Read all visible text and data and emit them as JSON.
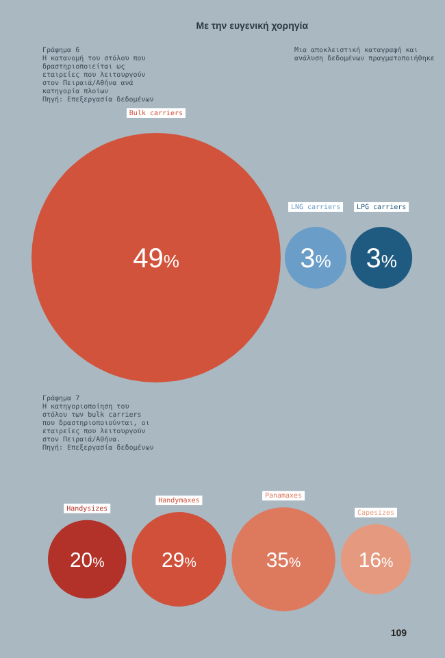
{
  "chart_data": [
    {
      "type": "other",
      "title": "Γράφημα 6",
      "subtitle": "Η κατανομή του στόλου που δραστηριοποιείται ως εταιρείες που λειτουργούν στον Πειραιά/Αθήνα ανά κατηγορία πλοίων",
      "annotations": [
        "Πηγή: Επεξεργασία δεδομένων",
        "Με την ευγενική χορηγία",
        "Μια αποκλειστική καταγραφή και ανάλυση δεδομένων πραγματοποιήθηκε"
      ],
      "categories": [
        "Bulk carriers",
        "LNG carriers",
        "LPG carriers"
      ],
      "values": [
        49,
        3,
        3
      ],
      "value_labels": [
        "49%",
        "3%",
        "3%"
      ],
      "colors": [
        "#d2533b",
        "#6a9ec8",
        "#1f5a80"
      ]
    },
    {
      "type": "other",
      "title": "Γράφημα 7",
      "subtitle": "Η κατηγοριοποίηση του στόλου των bulk carriers που δραστηριοποιούνται, οι εταιρείες που λειτουργούν στον Πειραιά/Αθήνα.",
      "annotations": [
        "Πηγή: Επεξεργασία δεδομένων",
        "109"
      ],
      "categories": [
        "Handysizes",
        "Handymaxes",
        "Panamaxes",
        "Capesizes"
      ],
      "values": [
        20,
        29,
        35,
        16
      ],
      "value_labels": [
        "20%",
        "29%",
        "35%",
        "16%"
      ],
      "colors": [
        "#b23229",
        "#d0503a",
        "#dd7a5e",
        "#e59a80"
      ]
    }
  ]
}
